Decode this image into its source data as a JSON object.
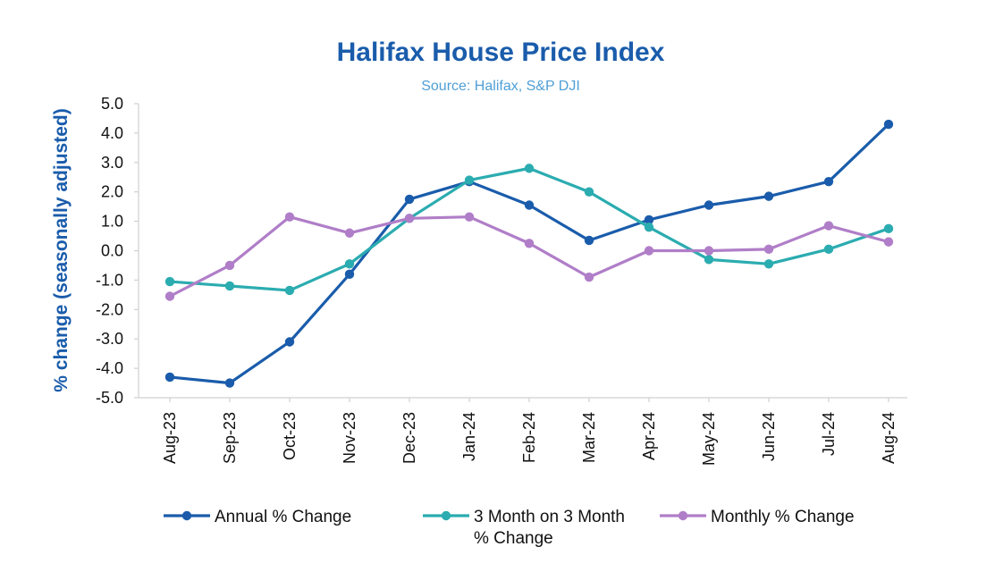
{
  "chart_data": {
    "type": "line",
    "title": "Halifax House Price Index",
    "subtitle": "Source: Halifax, S&P DJI",
    "ylabel": "%  change (seasonally adjusted)",
    "xlabel": "",
    "ylim": [
      -5.0,
      5.0
    ],
    "yticks": [
      "5.0",
      "4.0",
      "3.0",
      "2.0",
      "1.0",
      "0.0",
      "-1.0",
      "-2.0",
      "-3.0",
      "-4.0",
      "-5.0"
    ],
    "ytick_values": [
      5,
      4,
      3,
      2,
      1,
      0,
      -1,
      -2,
      -3,
      -4,
      -5
    ],
    "grid": false,
    "legend_position": "bottom",
    "categories": [
      "Aug-23",
      "Sep-23",
      "Oct-23",
      "Nov-23",
      "Dec-23",
      "Jan-24",
      "Feb-24",
      "Mar-24",
      "Apr-24",
      "May-24",
      "Jun-24",
      "Jul-24",
      "Aug-24"
    ],
    "series": [
      {
        "name": "Annual % Change",
        "color": "#1a5cab",
        "values": [
          -4.3,
          -4.5,
          -3.1,
          -0.8,
          1.75,
          2.35,
          1.55,
          0.35,
          1.05,
          1.55,
          1.85,
          2.35,
          4.3
        ]
      },
      {
        "name": "3 Month on 3 Month % Change",
        "legend_lines": [
          "3 Month on 3 Month",
          "% Change"
        ],
        "color": "#2bacb0",
        "values": [
          -1.05,
          -1.2,
          -1.35,
          -0.45,
          1.1,
          2.4,
          2.8,
          2.0,
          0.8,
          -0.3,
          -0.45,
          0.05,
          0.75
        ]
      },
      {
        "name": "Monthly % Change",
        "color": "#b07ec8",
        "values": [
          -1.55,
          -0.5,
          1.15,
          0.6,
          1.1,
          1.15,
          0.25,
          -0.9,
          0.0,
          0.0,
          0.05,
          0.85,
          0.3
        ]
      }
    ]
  }
}
